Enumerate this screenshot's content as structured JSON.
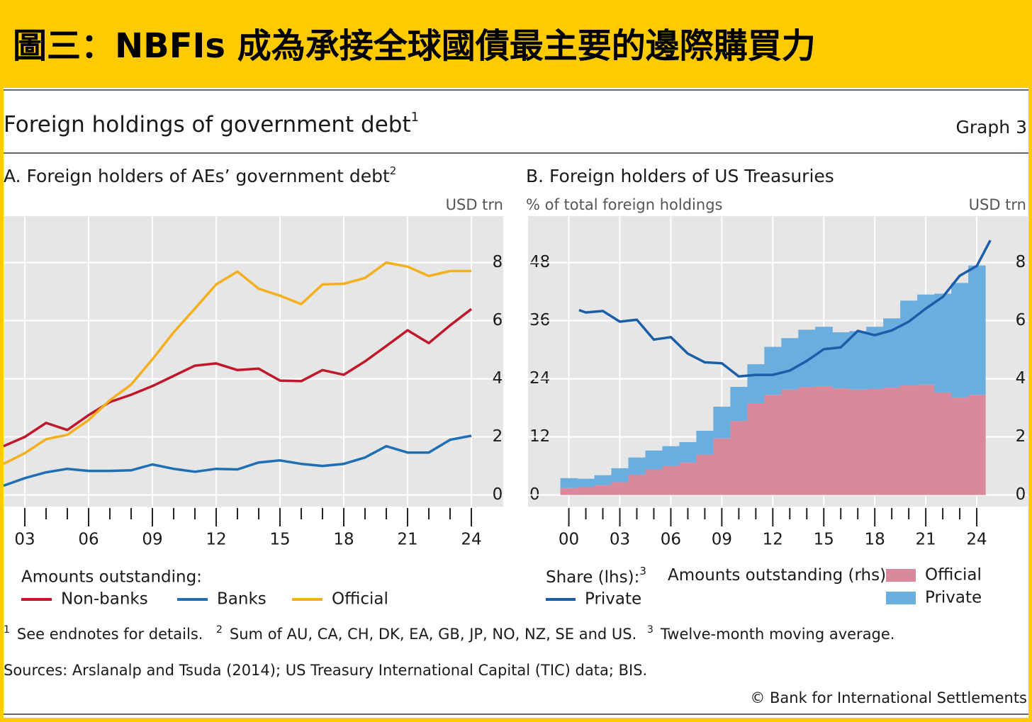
{
  "header": {
    "title": "圖三：NBFIs 成為承接全球國債最主要的邊際購買力"
  },
  "figure": {
    "title": "Foreign holdings of government debt",
    "title_note": "1",
    "label": "Graph 3"
  },
  "chart_data": [
    {
      "type": "line",
      "title": "A. Foreign holders of AEs’ government debt",
      "title_note": "2",
      "y_label": "USD trn",
      "x": [
        2002,
        2003,
        2004,
        2005,
        2006,
        2007,
        2008,
        2009,
        2010,
        2011,
        2012,
        2013,
        2014,
        2015,
        2016,
        2017,
        2018,
        2019,
        2020,
        2021,
        2022,
        2023,
        2024
      ],
      "xlim": [
        2002,
        2025.5
      ],
      "xticks": [
        {
          "value": 2003,
          "label": "03"
        },
        {
          "value": 2006,
          "label": "06"
        },
        {
          "value": 2009,
          "label": "09"
        },
        {
          "value": 2012,
          "label": "12"
        },
        {
          "value": 2015,
          "label": "15"
        },
        {
          "value": 2018,
          "label": "18"
        },
        {
          "value": 2021,
          "label": "21"
        },
        {
          "value": 2024,
          "label": "24"
        }
      ],
      "x_minor_ticks": [
        2004,
        2005,
        2007,
        2008,
        2010,
        2011,
        2013,
        2014,
        2016,
        2017,
        2019,
        2020,
        2022,
        2023
      ],
      "ylim": [
        -0.4,
        9.6
      ],
      "yticks": [
        0,
        2,
        4,
        6,
        8
      ],
      "grid": true,
      "legend_title": "Amounts outstanding:",
      "series": [
        {
          "name": "Non-banks",
          "color": "#c0182a",
          "values": [
            1.68,
            2.0,
            2.48,
            2.24,
            2.75,
            3.2,
            3.45,
            3.75,
            4.1,
            4.45,
            4.53,
            4.3,
            4.35,
            3.94,
            3.92,
            4.3,
            4.14,
            4.6,
            5.13,
            5.67,
            5.23,
            5.84,
            6.4
          ]
        },
        {
          "name": "Banks",
          "color": "#1f6fb4",
          "values": [
            0.32,
            0.58,
            0.78,
            0.9,
            0.83,
            0.83,
            0.85,
            1.05,
            0.9,
            0.8,
            0.9,
            0.88,
            1.12,
            1.19,
            1.07,
            1.0,
            1.07,
            1.29,
            1.68,
            1.46,
            1.46,
            1.9,
            2.04
          ]
        },
        {
          "name": "Official",
          "color": "#f4b01c",
          "values": [
            1.07,
            1.44,
            1.92,
            2.07,
            2.58,
            3.26,
            3.8,
            4.67,
            5.6,
            6.42,
            7.25,
            7.69,
            7.1,
            6.86,
            6.57,
            7.25,
            7.27,
            7.47,
            8.0,
            7.86,
            7.54,
            7.71,
            7.71
          ]
        }
      ]
    },
    {
      "type": "combo",
      "title": "B. Foreign holders of US Treasuries",
      "y_label": "% of total foreign holdings",
      "y2_label": "USD trn",
      "x": [
        2000,
        2001,
        2002,
        2003,
        2004,
        2005,
        2006,
        2007,
        2008,
        2009,
        2010,
        2011,
        2012,
        2013,
        2014,
        2015,
        2016,
        2017,
        2018,
        2019,
        2020,
        2021,
        2022,
        2023,
        2024
      ],
      "xlim": [
        1997.6,
        2027
      ],
      "xticks": [
        {
          "value": 2000,
          "label": "00"
        },
        {
          "value": 2003,
          "label": "03"
        },
        {
          "value": 2006,
          "label": "06"
        },
        {
          "value": 2009,
          "label": "09"
        },
        {
          "value": 2012,
          "label": "12"
        },
        {
          "value": 2015,
          "label": "15"
        },
        {
          "value": 2018,
          "label": "18"
        },
        {
          "value": 2021,
          "label": "21"
        },
        {
          "value": 2024,
          "label": "24"
        }
      ],
      "x_minor_ticks": [
        2001,
        2002,
        2004,
        2005,
        2007,
        2008,
        2010,
        2011,
        2013,
        2014,
        2016,
        2017,
        2019,
        2020,
        2022,
        2023
      ],
      "ylim": [
        -2.4,
        57.6
      ],
      "yticks": [
        0,
        12,
        24,
        36,
        48
      ],
      "y2lim": [
        -0.4,
        9.6
      ],
      "y2ticks": [
        0,
        2,
        4,
        6,
        8
      ],
      "grid": true,
      "legend_titles": [
        {
          "text": "Share (lhs):",
          "note": "3"
        },
        {
          "text": "Amounts outstanding (rhs):"
        }
      ],
      "series": [
        {
          "name": "Official",
          "type": "bar",
          "axis": "y2",
          "legend": 1,
          "color": "#d9899b",
          "values": [
            0.24,
            0.27,
            0.34,
            0.44,
            0.7,
            0.88,
            1.0,
            1.12,
            1.39,
            1.95,
            2.55,
            3.16,
            3.45,
            3.63,
            3.72,
            3.75,
            3.67,
            3.63,
            3.65,
            3.7,
            3.77,
            3.8,
            3.53,
            3.36,
            3.45
          ]
        },
        {
          "name": "Private",
          "type": "bar",
          "axis": "y2",
          "legend": 1,
          "color": "#6aaee0",
          "values": [
            0.34,
            0.29,
            0.34,
            0.48,
            0.59,
            0.65,
            0.68,
            0.7,
            0.82,
            1.09,
            1.17,
            1.34,
            1.65,
            1.77,
            1.97,
            2.04,
            1.93,
            2.01,
            2.14,
            2.38,
            2.92,
            3.1,
            3.4,
            3.94,
            4.45
          ]
        },
        {
          "name": "Private",
          "type": "line",
          "axis": "y",
          "legend": 0,
          "color": "#1a5ea8",
          "x": [
            2000.6,
            2001,
            2002,
            2003,
            2004,
            2005,
            2006,
            2007,
            2008,
            2009,
            2010,
            2011,
            2012,
            2013,
            2014,
            2015,
            2016,
            2017,
            2018,
            2019,
            2020,
            2021,
            2022,
            2023,
            2024,
            2024.8
          ],
          "values": [
            38.2,
            37.7,
            38.0,
            35.8,
            36.2,
            32.1,
            32.6,
            29.2,
            27.4,
            27.2,
            24.5,
            24.8,
            24.8,
            25.7,
            27.7,
            30.1,
            30.5,
            33.9,
            33.0,
            34.0,
            35.8,
            38.5,
            40.9,
            45.3,
            47.3,
            52.6
          ]
        }
      ]
    }
  ],
  "footnotes": [
    {
      "mark": "1",
      "text": "See endnotes for details."
    },
    {
      "mark": "2",
      "text": "Sum of AU, CA, CH, DK, EA, GB, JP, NO, NZ, SE and US."
    },
    {
      "mark": "3",
      "text": "Twelve-month moving average."
    }
  ],
  "sources": "Sources: Arslanalp and Tsuda (2014); US Treasury International Capital (TIC) data; BIS.",
  "copyright": "© Bank for International Settlements"
}
